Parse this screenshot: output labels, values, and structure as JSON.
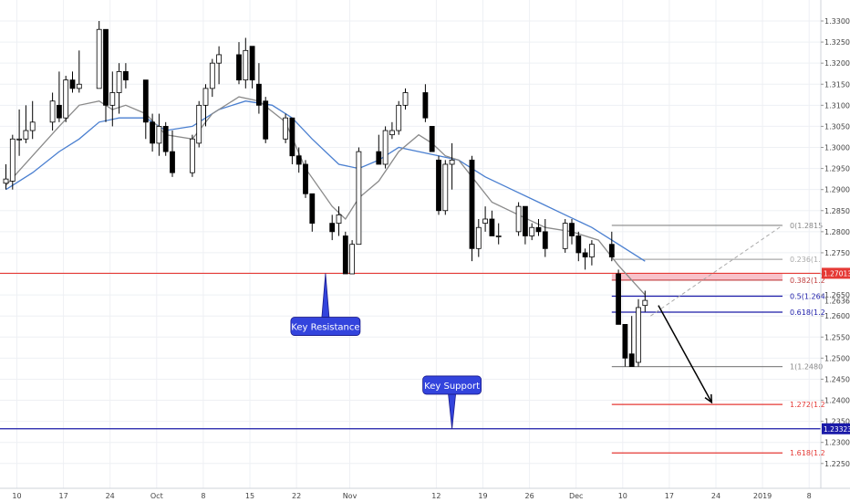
{
  "chart_data": {
    "type": "candlestick",
    "ylim": [
      1.2255,
      1.3325
    ],
    "y_ticks": [
      "1.33000",
      "1.32500",
      "1.32000",
      "1.31500",
      "1.31000",
      "1.30500",
      "1.30000",
      "1.29500",
      "1.29000",
      "1.28500",
      "1.28000",
      "1.27500",
      "1.27000",
      "1.26500",
      "1.26000",
      "1.25500",
      "1.25000",
      "1.24500",
      "1.24000",
      "1.23500",
      "1.23000",
      "1.22500"
    ],
    "x_ticks": [
      "10",
      "17",
      "24",
      "Oct",
      "8",
      "15",
      "22",
      "Nov",
      "12",
      "19",
      "26",
      "Dec",
      "10",
      "17",
      "24",
      "2019",
      "8"
    ],
    "x_tick_days": [
      0,
      7,
      14,
      21,
      28,
      35,
      42,
      50,
      63,
      70,
      77,
      84,
      91,
      98,
      105,
      112,
      119
    ],
    "candles": [
      {
        "d": 0,
        "o": 1.2915,
        "h": 1.296,
        "l": 1.29,
        "c": 1.2925
      },
      {
        "d": 1,
        "o": 1.292,
        "h": 1.303,
        "l": 1.29,
        "c": 1.302
      },
      {
        "d": 2,
        "o": 1.302,
        "h": 1.309,
        "l": 1.298,
        "c": 1.302
      },
      {
        "d": 3,
        "o": 1.302,
        "h": 1.31,
        "l": 1.301,
        "c": 1.304
      },
      {
        "d": 4,
        "o": 1.304,
        "h": 1.311,
        "l": 1.302,
        "c": 1.306
      },
      {
        "d": 7,
        "o": 1.306,
        "h": 1.313,
        "l": 1.304,
        "c": 1.311
      },
      {
        "d": 8,
        "o": 1.31,
        "h": 1.318,
        "l": 1.306,
        "c": 1.307
      },
      {
        "d": 9,
        "o": 1.307,
        "h": 1.317,
        "l": 1.306,
        "c": 1.316
      },
      {
        "d": 10,
        "o": 1.316,
        "h": 1.318,
        "l": 1.313,
        "c": 1.314
      },
      {
        "d": 11,
        "o": 1.314,
        "h": 1.323,
        "l": 1.313,
        "c": 1.315
      },
      {
        "d": 14,
        "o": 1.314,
        "h": 1.33,
        "l": 1.314,
        "c": 1.328
      },
      {
        "d": 15,
        "o": 1.328,
        "h": 1.328,
        "l": 1.306,
        "c": 1.31
      },
      {
        "d": 16,
        "o": 1.31,
        "h": 1.318,
        "l": 1.305,
        "c": 1.313
      },
      {
        "d": 17,
        "o": 1.313,
        "h": 1.32,
        "l": 1.308,
        "c": 1.318
      },
      {
        "d": 18,
        "o": 1.318,
        "h": 1.32,
        "l": 1.314,
        "c": 1.316
      },
      {
        "d": 21,
        "o": 1.316,
        "h": 1.316,
        "l": 1.302,
        "c": 1.306
      },
      {
        "d": 22,
        "o": 1.306,
        "h": 1.308,
        "l": 1.299,
        "c": 1.301
      },
      {
        "d": 23,
        "o": 1.301,
        "h": 1.308,
        "l": 1.298,
        "c": 1.305
      },
      {
        "d": 24,
        "o": 1.305,
        "h": 1.306,
        "l": 1.298,
        "c": 1.299
      },
      {
        "d": 25,
        "o": 1.299,
        "h": 1.304,
        "l": 1.293,
        "c": 1.294
      },
      {
        "d": 28,
        "o": 1.294,
        "h": 1.303,
        "l": 1.293,
        "c": 1.302
      },
      {
        "d": 29,
        "o": 1.301,
        "h": 1.311,
        "l": 1.3,
        "c": 1.31
      },
      {
        "d": 30,
        "o": 1.31,
        "h": 1.315,
        "l": 1.305,
        "c": 1.314
      },
      {
        "d": 31,
        "o": 1.314,
        "h": 1.321,
        "l": 1.312,
        "c": 1.32
      },
      {
        "d": 32,
        "o": 1.32,
        "h": 1.324,
        "l": 1.315,
        "c": 1.322
      },
      {
        "d": 35,
        "o": 1.322,
        "h": 1.325,
        "l": 1.315,
        "c": 1.316
      },
      {
        "d": 36,
        "o": 1.316,
        "h": 1.326,
        "l": 1.314,
        "c": 1.323
      },
      {
        "d": 37,
        "o": 1.324,
        "h": 1.324,
        "l": 1.314,
        "c": 1.316
      },
      {
        "d": 38,
        "o": 1.315,
        "h": 1.32,
        "l": 1.308,
        "c": 1.31
      },
      {
        "d": 39,
        "o": 1.311,
        "h": 1.312,
        "l": 1.301,
        "c": 1.302
      },
      {
        "d": 42,
        "o": 1.302,
        "h": 1.308,
        "l": 1.301,
        "c": 1.307
      },
      {
        "d": 43,
        "o": 1.307,
        "h": 1.307,
        "l": 1.296,
        "c": 1.298
      },
      {
        "d": 44,
        "o": 1.298,
        "h": 1.3,
        "l": 1.294,
        "c": 1.296
      },
      {
        "d": 45,
        "o": 1.296,
        "h": 1.297,
        "l": 1.288,
        "c": 1.289
      },
      {
        "d": 46,
        "o": 1.289,
        "h": 1.289,
        "l": 1.28,
        "c": 1.282
      },
      {
        "d": 49,
        "o": 1.282,
        "h": 1.284,
        "l": 1.278,
        "c": 1.28
      },
      {
        "d": 50,
        "o": 1.282,
        "h": 1.286,
        "l": 1.279,
        "c": 1.284
      },
      {
        "d": 51,
        "o": 1.279,
        "h": 1.28,
        "l": 1.27,
        "c": 1.27
      },
      {
        "d": 52,
        "o": 1.27,
        "h": 1.278,
        "l": 1.27,
        "c": 1.277
      },
      {
        "d": 53,
        "o": 1.277,
        "h": 1.3,
        "l": 1.277,
        "c": 1.299
      },
      {
        "d": 56,
        "o": 1.299,
        "h": 1.303,
        "l": 1.296,
        "c": 1.296
      },
      {
        "d": 57,
        "o": 1.296,
        "h": 1.305,
        "l": 1.295,
        "c": 1.304
      },
      {
        "d": 58,
        "o": 1.303,
        "h": 1.306,
        "l": 1.302,
        "c": 1.304
      },
      {
        "d": 59,
        "o": 1.304,
        "h": 1.311,
        "l": 1.303,
        "c": 1.31
      },
      {
        "d": 60,
        "o": 1.31,
        "h": 1.314,
        "l": 1.309,
        "c": 1.313
      },
      {
        "d": 63,
        "o": 1.313,
        "h": 1.315,
        "l": 1.306,
        "c": 1.307
      },
      {
        "d": 64,
        "o": 1.305,
        "h": 1.305,
        "l": 1.299,
        "c": 1.299
      },
      {
        "d": 65,
        "o": 1.297,
        "h": 1.298,
        "l": 1.284,
        "c": 1.285
      },
      {
        "d": 66,
        "o": 1.285,
        "h": 1.297,
        "l": 1.284,
        "c": 1.296
      },
      {
        "d": 67,
        "o": 1.296,
        "h": 1.301,
        "l": 1.29,
        "c": 1.297
      },
      {
        "d": 70,
        "o": 1.297,
        "h": 1.298,
        "l": 1.273,
        "c": 1.276
      },
      {
        "d": 71,
        "o": 1.276,
        "h": 1.283,
        "l": 1.274,
        "c": 1.281
      },
      {
        "d": 72,
        "o": 1.282,
        "h": 1.286,
        "l": 1.28,
        "c": 1.283
      },
      {
        "d": 73,
        "o": 1.283,
        "h": 1.285,
        "l": 1.279,
        "c": 1.279
      },
      {
        "d": 74,
        "o": 1.279,
        "h": 1.282,
        "l": 1.277,
        "c": 1.279
      },
      {
        "d": 77,
        "o": 1.28,
        "h": 1.287,
        "l": 1.279,
        "c": 1.286
      },
      {
        "d": 78,
        "o": 1.286,
        "h": 1.286,
        "l": 1.277,
        "c": 1.279
      },
      {
        "d": 79,
        "o": 1.279,
        "h": 1.282,
        "l": 1.278,
        "c": 1.281
      },
      {
        "d": 80,
        "o": 1.281,
        "h": 1.283,
        "l": 1.279,
        "c": 1.28
      },
      {
        "d": 81,
        "o": 1.28,
        "h": 1.283,
        "l": 1.274,
        "c": 1.276
      },
      {
        "d": 84,
        "o": 1.276,
        "h": 1.283,
        "l": 1.275,
        "c": 1.282
      },
      {
        "d": 85,
        "o": 1.282,
        "h": 1.283,
        "l": 1.277,
        "c": 1.279
      },
      {
        "d": 86,
        "o": 1.279,
        "h": 1.28,
        "l": 1.273,
        "c": 1.275
      },
      {
        "d": 87,
        "o": 1.275,
        "h": 1.276,
        "l": 1.271,
        "c": 1.274
      },
      {
        "d": 88,
        "o": 1.274,
        "h": 1.278,
        "l": 1.272,
        "c": 1.277
      },
      {
        "d": 91,
        "o": 1.277,
        "h": 1.28,
        "l": 1.273,
        "c": 1.274
      },
      {
        "d": 92,
        "o": 1.27,
        "h": 1.271,
        "l": 1.258,
        "c": 1.258
      },
      {
        "d": 93,
        "o": 1.258,
        "h": 1.258,
        "l": 1.248,
        "c": 1.25
      },
      {
        "d": 94,
        "o": 1.251,
        "h": 1.26,
        "l": 1.248,
        "c": 1.248
      },
      {
        "d": 95,
        "o": 1.249,
        "h": 1.264,
        "l": 1.248,
        "c": 1.262
      },
      {
        "d": 96,
        "o": 1.2625,
        "h": 1.266,
        "l": 1.261,
        "c": 1.2637
      }
    ],
    "ema_fast": [
      [
        0,
        1.291
      ],
      [
        4,
        1.298
      ],
      [
        8,
        1.305
      ],
      [
        11,
        1.31
      ],
      [
        14,
        1.311
      ],
      [
        16,
        1.309
      ],
      [
        18,
        1.31
      ],
      [
        21,
        1.308
      ],
      [
        24,
        1.303
      ],
      [
        28,
        1.302
      ],
      [
        31,
        1.308
      ],
      [
        35,
        1.312
      ],
      [
        38,
        1.311
      ],
      [
        42,
        1.306
      ],
      [
        45,
        1.295
      ],
      [
        49,
        1.286
      ],
      [
        51,
        1.283
      ],
      [
        53,
        1.288
      ],
      [
        56,
        1.292
      ],
      [
        59,
        1.299
      ],
      [
        62,
        1.303
      ],
      [
        64,
        1.301
      ],
      [
        66,
        1.298
      ],
      [
        68,
        1.297
      ],
      [
        70,
        1.293
      ],
      [
        73,
        1.287
      ],
      [
        77,
        1.284
      ],
      [
        81,
        1.281
      ],
      [
        85,
        1.28
      ],
      [
        89,
        1.278
      ],
      [
        92,
        1.272
      ],
      [
        96,
        1.265
      ]
    ],
    "ema_slow": [
      [
        0,
        1.29
      ],
      [
        4,
        1.294
      ],
      [
        8,
        1.299
      ],
      [
        11,
        1.302
      ],
      [
        14,
        1.306
      ],
      [
        17,
        1.307
      ],
      [
        21,
        1.307
      ],
      [
        24,
        1.304
      ],
      [
        28,
        1.305
      ],
      [
        32,
        1.309
      ],
      [
        36,
        1.311
      ],
      [
        40,
        1.31
      ],
      [
        43,
        1.307
      ],
      [
        46,
        1.302
      ],
      [
        50,
        1.296
      ],
      [
        53,
        1.295
      ],
      [
        56,
        1.297
      ],
      [
        59,
        1.3
      ],
      [
        62,
        1.299
      ],
      [
        65,
        1.298
      ],
      [
        68,
        1.297
      ],
      [
        72,
        1.293
      ],
      [
        76,
        1.29
      ],
      [
        80,
        1.287
      ],
      [
        84,
        1.284
      ],
      [
        88,
        1.281
      ],
      [
        91,
        1.278
      ],
      [
        94,
        1.275
      ],
      [
        96,
        1.273
      ]
    ],
    "hlines": [
      {
        "name": "resistance",
        "price": 1.27013,
        "color": "#e53935",
        "label": "1.27013"
      },
      {
        "name": "support",
        "price": 1.23323,
        "color": "#1a1aa8",
        "label": "1.23323"
      }
    ],
    "current_price": "1.26365",
    "fib": {
      "start_day": 91,
      "end_day": 119,
      "levels": [
        {
          "price": 1.2815,
          "text": "0(1.2815",
          "color": "#888888"
        },
        {
          "price": 1.27345,
          "text": "0.236(1.",
          "color": "#aaaaaa"
        },
        {
          "price": 1.2685,
          "text": "0.382(1.2",
          "color": "#c04040"
        },
        {
          "price": 1.2647,
          "text": "0.5(1.264",
          "color": "#1a1aa8"
        },
        {
          "price": 1.2609,
          "text": "0.618(1.2",
          "color": "#1a1aa8"
        },
        {
          "price": 1.248,
          "text": "1(1.2480",
          "color": "#888888"
        },
        {
          "price": 1.239,
          "text": "1.272(1.2",
          "color": "#e53935"
        },
        {
          "price": 1.2275,
          "text": "1.618(1.2",
          "color": "#e53935"
        }
      ]
    },
    "fib_zone": [
      1.2685,
      1.27013
    ],
    "annotations": [
      {
        "name": "key-resistance-callout",
        "text": "Key Resistance",
        "day": 48,
        "price": 1.2701
      },
      {
        "name": "key-support-callout",
        "text": "Key Support",
        "day": 67,
        "price": 1.2332
      }
    ],
    "forecast_arrow": {
      "from": [
        98,
        1.2625
      ],
      "to": [
        106,
        1.2395
      ]
    },
    "colors": {
      "bull": "#ffffff",
      "bear": "#000000",
      "ema_fast": "#8a8a8a",
      "ema_slow": "#4a7fd0",
      "grid": "#eef0f4",
      "callout": "#3344dd"
    }
  }
}
